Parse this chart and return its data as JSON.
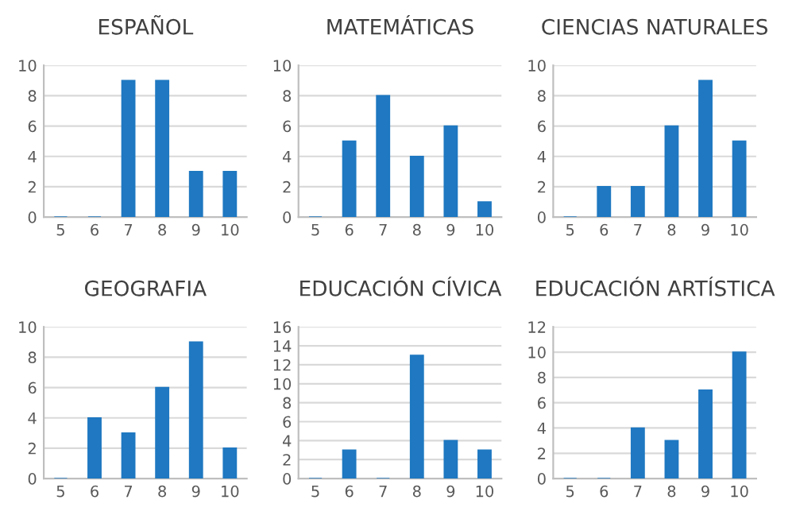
{
  "chart_data": [
    {
      "type": "bar",
      "title": "ESPAÑOL",
      "categories": [
        "5",
        "6",
        "7",
        "8",
        "9",
        "10"
      ],
      "values": [
        0,
        0,
        9,
        9,
        3,
        3
      ],
      "color": "#1f78c1",
      "ylim": [
        0,
        10
      ],
      "yticks": [
        0,
        2,
        4,
        6,
        8,
        10
      ],
      "grid": "y"
    },
    {
      "type": "bar",
      "title": "MATEMÁTICAS",
      "categories": [
        "5",
        "6",
        "7",
        "8",
        "9",
        "10"
      ],
      "values": [
        0,
        5,
        8,
        4,
        6,
        1
      ],
      "color": "#1f78c1",
      "ylim": [
        0,
        10
      ],
      "yticks": [
        0,
        2,
        4,
        6,
        8,
        10
      ],
      "grid": "y"
    },
    {
      "type": "bar",
      "title": "CIENCIAS NATURALES",
      "categories": [
        "5",
        "6",
        "7",
        "8",
        "9",
        "10"
      ],
      "values": [
        0,
        2,
        2,
        6,
        9,
        5
      ],
      "color": "#1f78c1",
      "ylim": [
        0,
        10
      ],
      "yticks": [
        0,
        2,
        4,
        6,
        8,
        10
      ],
      "grid": "y"
    },
    {
      "type": "bar",
      "title": "GEOGRAFIA",
      "categories": [
        "5",
        "6",
        "7",
        "8",
        "9",
        "10"
      ],
      "values": [
        0,
        4,
        3,
        6,
        9,
        2
      ],
      "color": "#1f78c1",
      "ylim": [
        0,
        10
      ],
      "yticks": [
        0,
        2,
        4,
        6,
        8,
        10
      ],
      "grid": "y"
    },
    {
      "type": "bar",
      "title": "EDUCACIÓN CÍVICA",
      "categories": [
        "5",
        "6",
        "7",
        "8",
        "9",
        "10"
      ],
      "values": [
        0,
        3,
        0,
        13,
        4,
        3
      ],
      "color": "#1f78c1",
      "ylim": [
        0,
        16
      ],
      "yticks": [
        0,
        2,
        4,
        6,
        8,
        10,
        12,
        14,
        16
      ],
      "grid": "y"
    },
    {
      "type": "bar",
      "title": "EDUCACIÓN ARTÍSTICA",
      "categories": [
        "5",
        "6",
        "7",
        "8",
        "9",
        "10"
      ],
      "values": [
        0,
        0,
        4,
        3,
        7,
        10
      ],
      "color": "#1f78c1",
      "ylim": [
        0,
        12
      ],
      "yticks": [
        0,
        2,
        4,
        6,
        8,
        10,
        12
      ],
      "grid": "y"
    }
  ]
}
